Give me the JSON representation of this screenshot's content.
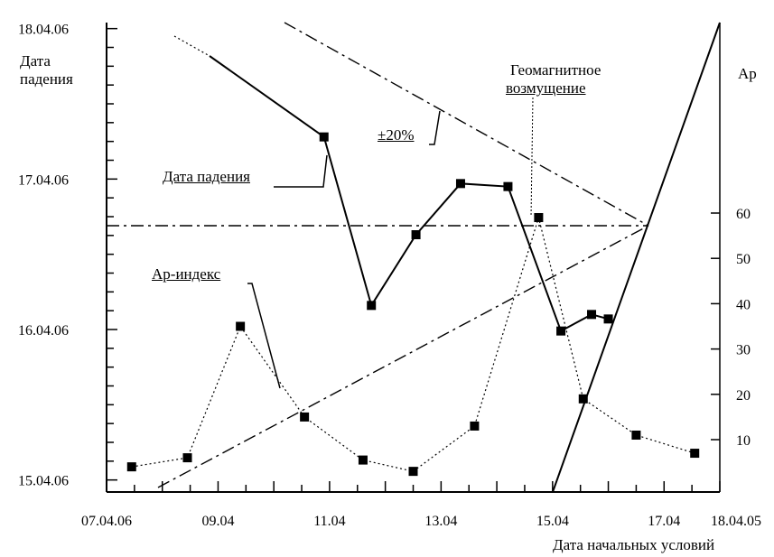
{
  "chart_data": {
    "type": "line",
    "title": "",
    "xlabel": "Дата начальных условий",
    "ylabel_left": "Дата падения",
    "ylabel_right": "Ap",
    "x_tick_labels": [
      "07.04.06",
      "09.04",
      "11.04",
      "13.04",
      "15.04",
      "17.04",
      "18.04.05"
    ],
    "x_tick_positions_days": [
      7,
      9,
      11,
      13,
      15,
      17,
      18
    ],
    "xlim_days": [
      7,
      18
    ],
    "y_left_tick_labels": [
      "15.04.06",
      "16.04.06",
      "17.04.06",
      "18.04.06"
    ],
    "y_left_tick_values": [
      15,
      16,
      17,
      18
    ],
    "ylim_left": [
      14.92,
      18.04
    ],
    "y_right_tick_labels": [
      "10",
      "20",
      "30",
      "40",
      "50",
      "60"
    ],
    "y_right_tick_values": [
      10,
      20,
      30,
      40,
      50,
      60
    ],
    "series": [
      {
        "name": "Дата падения",
        "axis": "left",
        "style": "solid",
        "x": [
          10.9,
          11.75,
          12.55,
          13.35,
          14.2,
          15.15,
          15.7,
          16.0
        ],
        "y": [
          17.28,
          16.16,
          16.63,
          16.97,
          16.95,
          15.99,
          16.1,
          16.07
        ]
      },
      {
        "name": "Ap-индекс",
        "axis": "right",
        "style": "dotted",
        "x": [
          7.45,
          8.45,
          9.4,
          10.55,
          11.6,
          12.5,
          13.6,
          14.75,
          15.55,
          16.5,
          17.55
        ],
        "y": [
          4,
          6,
          35,
          15,
          5.5,
          3,
          13,
          59,
          19,
          11,
          7
        ]
      }
    ],
    "annotations": {
      "label_fall_date": "Дата падения",
      "label_ap_index": "Ap-индекс",
      "label_tolerance": "±20%",
      "label_geomagnetic_line1": "Геомагнитное",
      "label_geomagnetic_line2": "возмущение"
    }
  }
}
